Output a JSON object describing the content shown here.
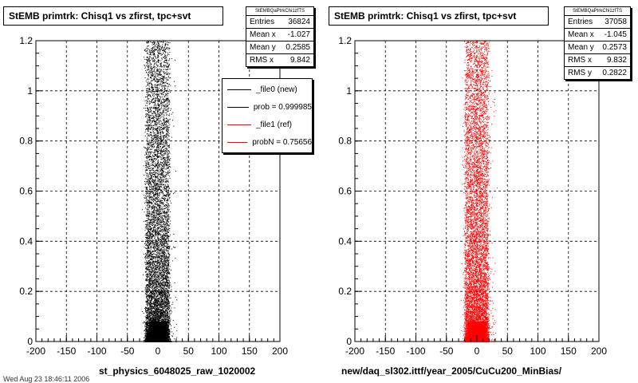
{
  "left": {
    "title": "StEMB primtrk: Chisq1 vs zfirst, tpc+svt",
    "xlabel": "st_physics_6048025_raw_1020002",
    "stats": {
      "header": "StEMBQaPtrkChi1zfTS",
      "rows": [
        {
          "k": "Entries",
          "v": "36824"
        },
        {
          "k": "Mean x",
          "v": "-1.027"
        },
        {
          "k": "Mean y",
          "v": "0.2585"
        },
        {
          "k": "RMS x",
          "v": "9.842"
        }
      ]
    },
    "legend": [
      {
        "label": "_file0 (new)",
        "color": "#000000"
      },
      {
        "label": "prob = 0.999985",
        "color": "#000000"
      },
      {
        "label": "_file1 (ref)",
        "color": "#ff0000"
      },
      {
        "label": "probN = 0.75656",
        "color": "#ff0000"
      }
    ]
  },
  "right": {
    "title": "StEMB primtrk: Chisq1 vs zfirst, tpc+svt",
    "xlabel": "new/daq_sl302.ittf/year_2005/CuCu200_MinBias/",
    "stats": {
      "header": "StEMBQaPtrkChi1zfTS",
      "rows": [
        {
          "k": "Entries",
          "v": "37058"
        },
        {
          "k": "Mean x",
          "v": "-1.045"
        },
        {
          "k": "Mean y",
          "v": "0.2573"
        },
        {
          "k": "RMS x",
          "v": "9.832"
        },
        {
          "k": "RMS y",
          "v": "0.2822"
        }
      ]
    }
  },
  "footer": "Wed Aug 23 18:46:11 2006",
  "chart_data": [
    {
      "type": "scatter",
      "title": "StEMB primtrk: Chisq1 vs zfirst, tpc+svt",
      "xlabel": "st_physics_6048025_raw_1020002",
      "xlim": [
        -200,
        200
      ],
      "ylim": [
        0,
        1.2
      ],
      "xticks": [
        -200,
        -150,
        -100,
        -50,
        0,
        50,
        100,
        150,
        200
      ],
      "yticks": [
        0,
        0.2,
        0.4,
        0.6,
        0.8,
        1,
        1.2
      ],
      "grid": true,
      "series": [
        {
          "name": "_file0 (new)",
          "color": "#000000",
          "band": {
            "x_core": [
              -20,
              18
            ],
            "x_tail": [
              -25,
              30
            ],
            "y": [
              0,
              1.2
            ]
          }
        }
      ],
      "stats": {
        "entries": 36824,
        "mean_x": -1.027,
        "mean_y": 0.2585,
        "rms_x": 9.842
      }
    },
    {
      "type": "scatter",
      "title": "StEMB primtrk: Chisq1 vs zfirst, tpc+svt",
      "xlabel": "new/daq_sl302.ittf/year_2005/CuCu200_MinBias/",
      "xlim": [
        -200,
        200
      ],
      "ylim": [
        0,
        1.2
      ],
      "xticks": [
        -200,
        -150,
        -100,
        -50,
        0,
        50,
        100,
        150,
        200
      ],
      "yticks": [
        0,
        0.2,
        0.4,
        0.6,
        0.8,
        1,
        1.2
      ],
      "grid": true,
      "series": [
        {
          "name": "_file1 (ref)",
          "color": "#ff0000",
          "band": {
            "x_core": [
              -20,
              18
            ],
            "x_tail": [
              -25,
              30
            ],
            "y": [
              0,
              1.2
            ]
          }
        }
      ],
      "stats": {
        "entries": 37058,
        "mean_x": -1.045,
        "mean_y": 0.2573,
        "rms_x": 9.832,
        "rms_y": 0.2822
      }
    }
  ]
}
